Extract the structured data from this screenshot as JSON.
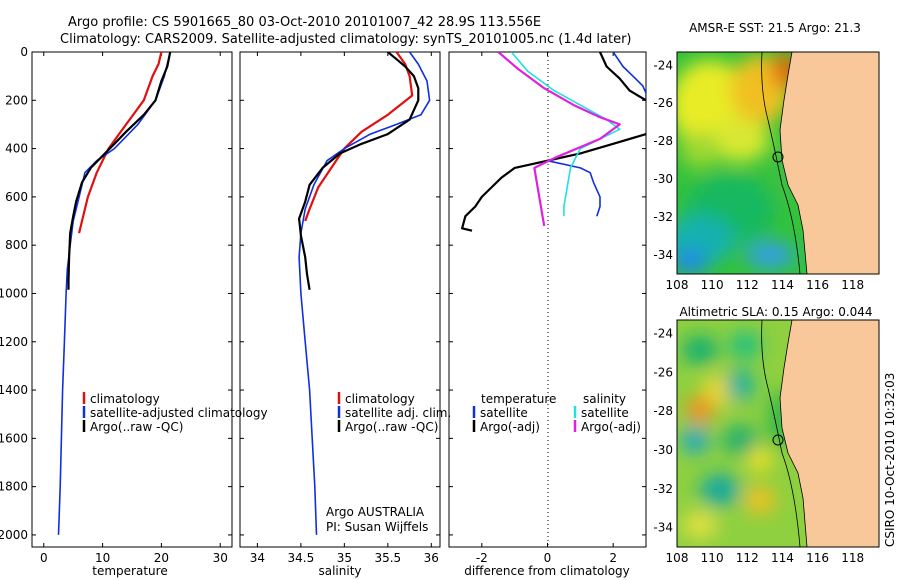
{
  "header": {
    "line1": "Argo profile: CS 5901665_80 03-Oct-2010 20101007_42 28.9S 113.556E",
    "line2": "Climatology: CARS2009. Satellite-adjusted climatology: synTS_20101005.nc (1.4d later)"
  },
  "colors": {
    "climatology": "#e01010",
    "satellite": "#1030e0",
    "argo": "#000000",
    "sat_salinity": "#20e0e0",
    "argo_salinity": "#e020e0",
    "land": "#f8c89a"
  },
  "chart_data": [
    {
      "type": "line",
      "id": "temperature",
      "xlabel": "temperature",
      "xlim": [
        -2,
        32
      ],
      "ylim": [
        0,
        2050
      ],
      "xticks": [
        "0",
        "10",
        "20",
        "30"
      ],
      "yticks": [
        "0",
        "200",
        "400",
        "600",
        "800",
        "1000",
        "1200",
        "1400",
        "1600",
        "1800",
        "2000"
      ],
      "legend": [
        "climatology",
        "satellite-adjusted climatology",
        "Argo(..raw -QC)"
      ],
      "series": [
        {
          "name": "climatology",
          "points": [
            [
              20,
              0
            ],
            [
              19.5,
              50
            ],
            [
              18.5,
              100
            ],
            [
              17,
              200
            ],
            [
              14,
              300
            ],
            [
              11,
              400
            ],
            [
              9,
              500
            ],
            [
              7.5,
              600
            ],
            [
              6.5,
              700
            ],
            [
              6,
              750
            ]
          ]
        },
        {
          "name": "satellite-adjusted climatology",
          "points": [
            [
              21.5,
              0
            ],
            [
              21,
              50
            ],
            [
              20.5,
              100
            ],
            [
              19,
              200
            ],
            [
              16,
              300
            ],
            [
              12,
              400
            ],
            [
              9,
              450
            ],
            [
              7,
              500
            ],
            [
              6,
              600
            ],
            [
              5,
              700
            ],
            [
              4.5,
              800
            ],
            [
              4,
              900
            ],
            [
              3.8,
              1000
            ],
            [
              3.5,
              1200
            ],
            [
              3.2,
              1400
            ],
            [
              3,
              1600
            ],
            [
              2.8,
              1800
            ],
            [
              2.5,
              2000
            ]
          ]
        },
        {
          "name": "Argo(..raw -QC)",
          "points": [
            [
              21.5,
              0
            ],
            [
              21,
              60
            ],
            [
              20,
              120
            ],
            [
              19,
              200
            ],
            [
              17,
              260
            ],
            [
              14,
              330
            ],
            [
              12,
              380
            ],
            [
              10,
              430
            ],
            [
              8,
              480
            ],
            [
              6.5,
              540
            ],
            [
              5.5,
              620
            ],
            [
              5,
              680
            ],
            [
              4.5,
              750
            ],
            [
              4.3,
              850
            ],
            [
              4.2,
              950
            ],
            [
              4.2,
              985
            ]
          ]
        }
      ]
    },
    {
      "type": "line",
      "id": "salinity",
      "xlabel": "salinity",
      "xlim": [
        33.8,
        36.1
      ],
      "ylim": [
        0,
        2050
      ],
      "xticks": [
        "34",
        "34.5",
        "35",
        "35.5",
        "36"
      ],
      "legend": [
        "climatology",
        "satellite adj. clim.",
        "Argo(..raw -QC)"
      ],
      "annotations": [
        "Argo AUSTRALIA",
        "PI: Susan Wijffels"
      ],
      "series": [
        {
          "name": "climatology",
          "points": [
            [
              35.6,
              0
            ],
            [
              35.7,
              50
            ],
            [
              35.75,
              100
            ],
            [
              35.78,
              180
            ],
            [
              35.5,
              260
            ],
            [
              35.2,
              330
            ],
            [
              35,
              400
            ],
            [
              34.85,
              480
            ],
            [
              34.7,
              560
            ],
            [
              34.6,
              650
            ],
            [
              34.55,
              700
            ]
          ]
        },
        {
          "name": "satellite adj. clim.",
          "points": [
            [
              35.75,
              0
            ],
            [
              35.85,
              50
            ],
            [
              35.95,
              120
            ],
            [
              35.98,
              200
            ],
            [
              35.88,
              260
            ],
            [
              35.6,
              300
            ],
            [
              35.3,
              340
            ],
            [
              35,
              400
            ],
            [
              34.8,
              450
            ],
            [
              34.65,
              550
            ],
            [
              34.55,
              650
            ],
            [
              34.5,
              750
            ],
            [
              34.48,
              850
            ],
            [
              34.5,
              1000
            ],
            [
              34.55,
              1200
            ],
            [
              34.6,
              1400
            ],
            [
              34.63,
              1600
            ],
            [
              34.66,
              1800
            ],
            [
              34.68,
              2000
            ]
          ]
        },
        {
          "name": "Argo(..raw -QC)",
          "points": [
            [
              35.5,
              0
            ],
            [
              35.6,
              30
            ],
            [
              35.7,
              60
            ],
            [
              35.8,
              100
            ],
            [
              35.85,
              150
            ],
            [
              35.85,
              200
            ],
            [
              35.75,
              280
            ],
            [
              35.5,
              340
            ],
            [
              35.2,
              380
            ],
            [
              34.95,
              420
            ],
            [
              34.75,
              480
            ],
            [
              34.6,
              550
            ],
            [
              34.55,
              620
            ],
            [
              34.48,
              690
            ],
            [
              34.5,
              760
            ],
            [
              34.55,
              850
            ],
            [
              34.57,
              920
            ],
            [
              34.6,
              985
            ]
          ]
        }
      ]
    },
    {
      "type": "line",
      "id": "difference",
      "xlabel": "difference from climatology",
      "xlim": [
        -3,
        3
      ],
      "ylim": [
        0,
        2050
      ],
      "xticks": [
        "-2",
        "0",
        "2"
      ],
      "legend_headers": [
        "temperature",
        "salinity"
      ],
      "legend": [
        "satellite",
        "Argo(-adj)",
        "satellite",
        "Argo(-adj)"
      ],
      "series": [
        {
          "name": "temperature satellite",
          "points": [
            [
              2,
              0
            ],
            [
              2.3,
              60
            ],
            [
              2.6,
              100
            ],
            [
              2.9,
              140
            ],
            [
              3,
              170
            ],
            [
              3,
              200
            ]
          ]
        },
        {
          "name": "temperature Argo(-adj)",
          "points": [
            [
              1.6,
              0
            ],
            [
              1.8,
              60
            ],
            [
              2.2,
              110
            ],
            [
              2.5,
              160
            ],
            [
              3,
              200
            ]
          ]
        },
        {
          "name": "temperature Argo(-adj) deep",
          "points": [
            [
              3,
              340
            ],
            [
              2,
              380
            ],
            [
              1,
              420
            ],
            [
              0,
              450
            ],
            [
              -1,
              480
            ],
            [
              -1.4,
              520
            ],
            [
              -2,
              600
            ],
            [
              -2.2,
              640
            ],
            [
              -2.5,
              680
            ],
            [
              -2.6,
              730
            ],
            [
              -2.3,
              740
            ]
          ]
        },
        {
          "name": "temperature satellite deep",
          "points": [
            [
              0,
              450
            ],
            [
              1,
              480
            ],
            [
              1.3,
              500
            ],
            [
              1.4,
              540
            ],
            [
              1.6,
              600
            ],
            [
              1.6,
              640
            ],
            [
              1.5,
              680
            ]
          ]
        },
        {
          "name": "salinity satellite",
          "points": [
            [
              -1.1,
              0
            ],
            [
              -0.6,
              80
            ],
            [
              0.2,
              160
            ],
            [
              1,
              220
            ],
            [
              1.8,
              280
            ],
            [
              2.2,
              320
            ],
            [
              1,
              400
            ],
            [
              0.7,
              480
            ],
            [
              0.6,
              560
            ],
            [
              0.5,
              640
            ],
            [
              0.5,
              680
            ]
          ]
        },
        {
          "name": "salinity Argo(-adj)",
          "points": [
            [
              -1.5,
              0
            ],
            [
              -0.9,
              70
            ],
            [
              -0.1,
              150
            ],
            [
              0.8,
              220
            ],
            [
              1.6,
              270
            ],
            [
              2.2,
              300
            ],
            [
              1.6,
              360
            ],
            [
              0.2,
              440
            ],
            [
              -0.4,
              480
            ],
            [
              -0.3,
              560
            ],
            [
              -0.2,
              640
            ],
            [
              -0.1,
              720
            ]
          ]
        }
      ]
    },
    {
      "type": "heatmap",
      "id": "sst_map",
      "title": "AMSR-E SST: 21.5 Argo: 21.3",
      "xticks": [
        "108",
        "110",
        "112",
        "114",
        "116",
        "118"
      ],
      "yticks": [
        "-24",
        "-26",
        "-28",
        "-30",
        "-32",
        "-34"
      ],
      "xlim": [
        108,
        119.5
      ],
      "ylim": [
        -35,
        -23.3
      ],
      "marker": [
        113.556,
        -28.9
      ]
    },
    {
      "type": "heatmap",
      "id": "sla_map",
      "title": "Altimetric SLA: 0.15 Argo: 0.044",
      "xticks": [
        "108",
        "110",
        "112",
        "114",
        "116",
        "118"
      ],
      "yticks": [
        "-24",
        "-26",
        "-28",
        "-30",
        "-32",
        "-34"
      ],
      "xlim": [
        108,
        119.5
      ],
      "ylim": [
        -35,
        -23.3
      ],
      "marker": [
        113.556,
        -28.9
      ]
    }
  ],
  "side_label": "CSIRO 10-Oct-2010 10:32:03"
}
